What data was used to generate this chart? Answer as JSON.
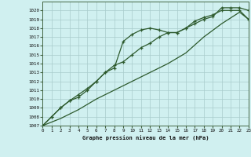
{
  "background_color": "#d0f0f0",
  "grid_color": "#a8cccc",
  "line_color": "#2d5a2d",
  "title": "Graphe pression niveau de la mer (hPa)",
  "xlim": [
    0,
    23
  ],
  "ylim": [
    1007,
    1021
  ],
  "xtick_vals": [
    0,
    1,
    2,
    3,
    4,
    5,
    6,
    7,
    8,
    9,
    10,
    11,
    12,
    13,
    14,
    15,
    16,
    17,
    18,
    19,
    20,
    21,
    22,
    23
  ],
  "ytick_vals": [
    1007,
    1008,
    1009,
    1010,
    1011,
    1012,
    1013,
    1014,
    1015,
    1016,
    1017,
    1018,
    1019,
    1020
  ],
  "line1_x": [
    0,
    1,
    2,
    3,
    4,
    5,
    6,
    7,
    8,
    9,
    10,
    11,
    12,
    13,
    14,
    15,
    16,
    17,
    18,
    19,
    20,
    21,
    22,
    23
  ],
  "line1_y": [
    1007,
    1008,
    1009,
    1009.8,
    1010.2,
    1011,
    1012,
    1013,
    1013.5,
    1016.5,
    1017.3,
    1017.8,
    1018,
    1017.8,
    1017.5,
    1017.5,
    1018,
    1018.5,
    1019,
    1019.3,
    1020.3,
    1020.3,
    1020.3,
    1020
  ],
  "line2_x": [
    0,
    1,
    2,
    3,
    4,
    5,
    6,
    7,
    8,
    9,
    10,
    11,
    12,
    13,
    14,
    15,
    16,
    17,
    18,
    19,
    20,
    21,
    22,
    23
  ],
  "line2_y": [
    1007,
    1008,
    1009,
    1009.8,
    1010.5,
    1011.2,
    1012,
    1013,
    1013.8,
    1014.2,
    1015,
    1015.8,
    1016.3,
    1017,
    1017.5,
    1017.5,
    1018,
    1018.8,
    1019.2,
    1019.5,
    1020,
    1020,
    1020,
    1019
  ],
  "line3_x": [
    0,
    2,
    4,
    6,
    8,
    10,
    12,
    14,
    16,
    18,
    20,
    22,
    23
  ],
  "line3_y": [
    1007,
    1007.8,
    1008.8,
    1010,
    1011,
    1012,
    1013,
    1014,
    1015.2,
    1017,
    1018.5,
    1019.8,
    1019
  ]
}
